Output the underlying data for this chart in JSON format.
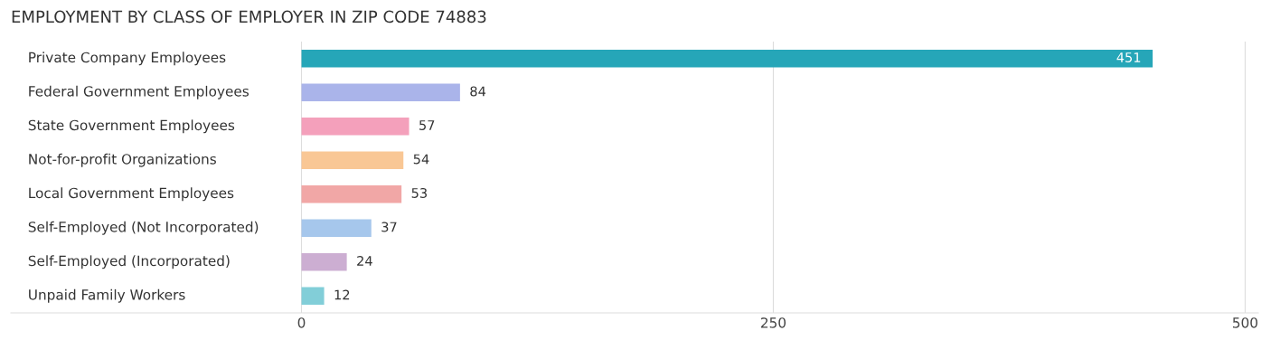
{
  "chart_data": {
    "type": "bar",
    "orientation": "horizontal",
    "title": "EMPLOYMENT BY CLASS OF EMPLOYER IN ZIP CODE 74883",
    "categories": [
      "Private Company Employees",
      "Federal Government Employees",
      "State Government Employees",
      "Not-for-profit Organizations",
      "Local Government Employees",
      "Self-Employed (Not Incorporated)",
      "Self-Employed (Incorporated)",
      "Unpaid Family Workers"
    ],
    "values": [
      451,
      84,
      57,
      54,
      53,
      37,
      24,
      12
    ],
    "colors": [
      "#26a6b8",
      "#aab4ea",
      "#f4a0bb",
      "#f9c795",
      "#f1a7a6",
      "#a6c7ec",
      "#ccaed2",
      "#82ced8"
    ],
    "xlim": [
      -154,
      507
    ],
    "xticks": [
      0,
      250,
      500
    ],
    "grid": "x",
    "data_labels": true
  }
}
